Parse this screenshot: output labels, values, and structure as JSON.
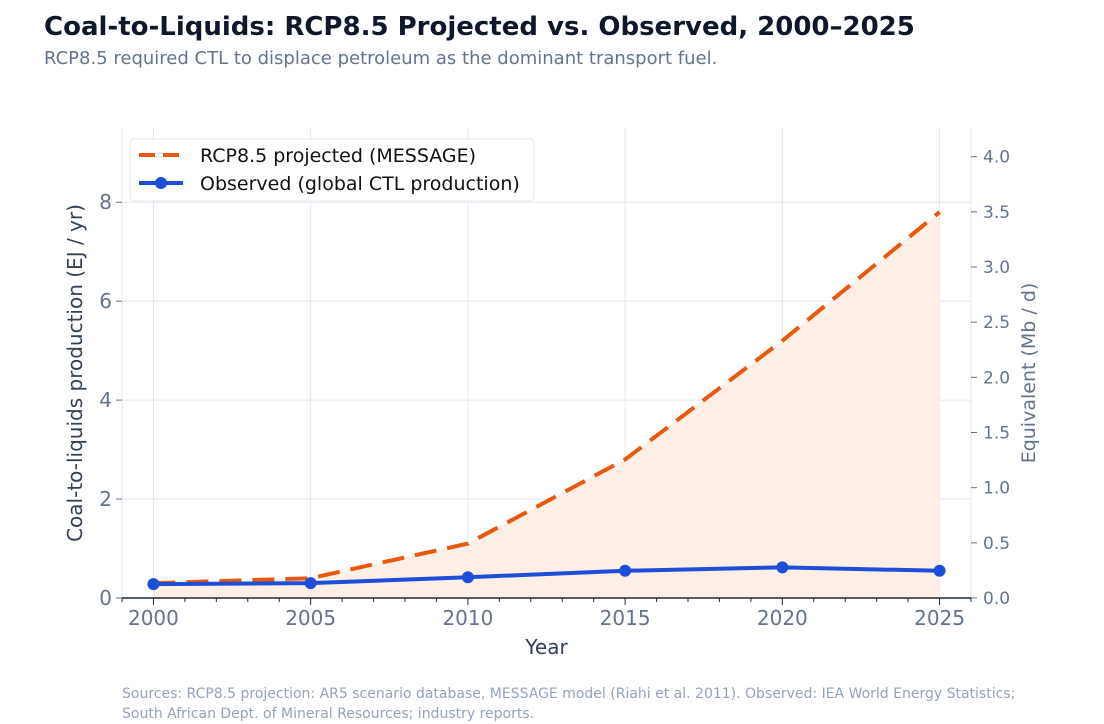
{
  "header": {
    "title": "Coal-to-Liquids: RCP8.5 Projected vs. Observed, 2000–2025",
    "subtitle": "RCP8.5 required CTL to displace petroleum as the dominant transport fuel."
  },
  "footer": {
    "sources": "Sources: RCP8.5 projection: AR5 scenario database, MESSAGE model (Riahi et al. 2011).  Observed: IEA World Energy Statistics; South African Dept. of Mineral Resources; industry reports."
  },
  "chart_data": {
    "type": "line",
    "x": [
      2000,
      2005,
      2010,
      2015,
      2020,
      2025
    ],
    "series": [
      {
        "name": "RCP8.5 projected (MESSAGE)",
        "values": [
          0.3,
          0.4,
          1.1,
          2.8,
          5.2,
          7.8
        ],
        "color": "#e8590c",
        "style": "dashed",
        "fill": true
      },
      {
        "name": "Observed (global CTL production)",
        "values": [
          0.28,
          0.3,
          0.42,
          0.55,
          0.62,
          0.55
        ],
        "color": "#1d4ed8",
        "style": "solid",
        "markers": true
      }
    ],
    "xlabel": "Year",
    "ylabel": "Coal-to-liquids production  (EJ / yr)",
    "y2label": "Equivalent  (Mb / d)",
    "xlim": [
      1999,
      2026
    ],
    "ylim": [
      0,
      9.5
    ],
    "y2lim": [
      0,
      4.26
    ],
    "xticks": [
      "2000",
      "2005",
      "2010",
      "2015",
      "2020",
      "2025"
    ],
    "yticks": [
      "0",
      "2",
      "4",
      "6",
      "8"
    ],
    "y2ticks": [
      "0.0",
      "0.5",
      "1.0",
      "1.5",
      "2.0",
      "2.5",
      "3.0",
      "3.5",
      "4.0"
    ],
    "grid": true,
    "legend_position": "top-left",
    "fill_color": "#fdeee6"
  }
}
